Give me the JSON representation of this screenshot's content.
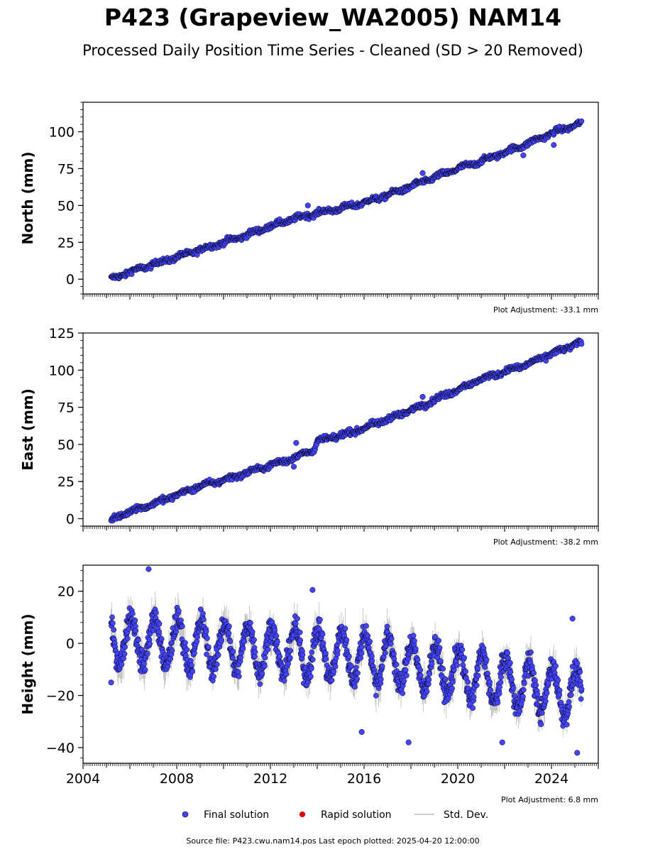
{
  "figure": {
    "title": "P423 (Grapeview_WA2005) NAM14",
    "subtitle": "Processed Daily Position Time Series - Cleaned (SD > 20 Removed)",
    "source": "Source file: P423.cwu.nam14.pos  Last epoch plotted: 2025-04-20 12:00:00"
  },
  "legend": {
    "final": "Final solution",
    "rapid": "Rapid solution",
    "stddev": "Std. Dev."
  },
  "colors": {
    "final": "#4444ff",
    "final_edge": "#000000",
    "rapid": "#dd0000",
    "stddev": "#bbbbbb"
  },
  "chart_data": [
    {
      "type": "scatter",
      "id": "north",
      "ylabel": "North (mm)",
      "xlim": [
        2004,
        2026
      ],
      "ylim": [
        -10,
        120
      ],
      "yticks": [
        0,
        25,
        50,
        75,
        100
      ],
      "adjustment": "Plot Adjustment: -33.1 mm",
      "series": [
        {
          "name": "Final solution",
          "x": [
            2005.2,
            2006.0,
            2007.0,
            2008.0,
            2009.0,
            2010.0,
            2011.0,
            2012.0,
            2013.0,
            2014.0,
            2015.0,
            2016.0,
            2017.0,
            2018.0,
            2019.0,
            2020.0,
            2021.0,
            2022.0,
            2023.0,
            2024.0,
            2025.3
          ],
          "y": [
            0,
            5,
            10,
            15,
            20,
            25,
            30,
            36,
            41,
            45,
            48,
            52,
            57,
            63,
            69,
            75,
            80,
            86,
            92,
            99,
            106
          ]
        }
      ],
      "outliers": {
        "x": [
          2018.5,
          2022.8,
          2024.1,
          2013.6
        ],
        "y": [
          72,
          84,
          91,
          50
        ]
      }
    },
    {
      "type": "scatter",
      "id": "east",
      "ylabel": "East (mm)",
      "xlim": [
        2004,
        2026
      ],
      "ylim": [
        -5,
        125
      ],
      "yticks": [
        0,
        25,
        50,
        75,
        100,
        125
      ],
      "adjustment": "Plot Adjustment: -38.2 mm",
      "series": [
        {
          "name": "Final solution",
          "x": [
            2005.2,
            2006.0,
            2007.0,
            2008.0,
            2009.0,
            2010.0,
            2011.0,
            2012.0,
            2013.0,
            2013.9,
            2014.0,
            2015.0,
            2016.0,
            2017.0,
            2018.0,
            2019.0,
            2020.0,
            2021.0,
            2022.0,
            2023.0,
            2024.0,
            2025.3
          ],
          "y": [
            -1,
            5,
            10,
            16,
            22,
            26,
            31,
            36,
            41,
            47,
            52,
            56,
            61,
            67,
            73,
            80,
            87,
            94,
            99,
            104,
            111,
            119
          ]
        }
      ],
      "outliers": {
        "x": [
          2013.1,
          2013.0,
          2018.5
        ],
        "y": [
          51,
          35,
          82
        ]
      }
    },
    {
      "type": "scatter",
      "id": "height",
      "ylabel": "Height (mm)",
      "xlim": [
        2004,
        2026
      ],
      "ylim": [
        -46,
        30
      ],
      "yticks": [
        -40,
        -20,
        0,
        20
      ],
      "xticks": [
        2004,
        2008,
        2012,
        2016,
        2020,
        2024
      ],
      "adjustment": "Plot Adjustment: 6.8 mm",
      "series": [
        {
          "name": "Final solution",
          "start": 2005.2,
          "end": 2025.3,
          "seasonal_amplitude_mm": 9,
          "trend_mm": [
            [
              2005.2,
              2
            ],
            [
              2016.0,
              -5
            ],
            [
              2025.3,
              -20
            ]
          ]
        }
      ],
      "outliers": {
        "x": [
          2006.8,
          2013.8,
          2015.9,
          2017.9,
          2021.9,
          2025.1,
          2005.2,
          2024.9
        ],
        "y": [
          28.5,
          20.5,
          -34,
          -38,
          -38,
          -42,
          -15,
          9.5
        ]
      }
    }
  ]
}
